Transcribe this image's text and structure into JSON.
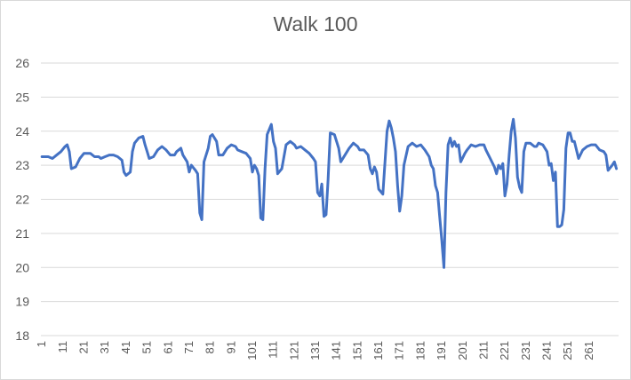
{
  "chart_data": {
    "type": "line",
    "title": "Walk 100",
    "xlabel": "",
    "ylabel": "",
    "ylim": [
      18,
      26
    ],
    "yticks": [
      "18",
      "19",
      "20",
      "21",
      "22",
      "23",
      "24",
      "25",
      "26"
    ],
    "xticks": [
      "1",
      "11",
      "21",
      "31",
      "41",
      "51",
      "61",
      "71",
      "81",
      "91",
      "101",
      "111",
      "121",
      "131",
      "141",
      "151",
      "161",
      "171",
      "181",
      "191",
      "201",
      "211",
      "221",
      "231",
      "241",
      "251",
      "261"
    ],
    "grid": "horizontal",
    "legend": "none",
    "line_color": "#4472c4",
    "series": [
      {
        "points": [
          [
            1,
            23.25
          ],
          [
            4,
            23.25
          ],
          [
            6,
            23.2
          ],
          [
            8,
            23.3
          ],
          [
            10,
            23.4
          ],
          [
            12,
            23.55
          ],
          [
            13,
            23.6
          ],
          [
            14,
            23.4
          ],
          [
            15,
            22.9
          ],
          [
            17,
            22.95
          ],
          [
            19,
            23.2
          ],
          [
            21,
            23.35
          ],
          [
            24,
            23.35
          ],
          [
            26,
            23.25
          ],
          [
            28,
            23.25
          ],
          [
            29,
            23.2
          ],
          [
            31,
            23.25
          ],
          [
            33,
            23.3
          ],
          [
            35,
            23.3
          ],
          [
            37,
            23.25
          ],
          [
            39,
            23.15
          ],
          [
            40,
            22.8
          ],
          [
            41,
            22.7
          ],
          [
            43,
            22.8
          ],
          [
            44,
            23.4
          ],
          [
            45,
            23.65
          ],
          [
            47,
            23.8
          ],
          [
            49,
            23.85
          ],
          [
            50,
            23.6
          ],
          [
            51,
            23.4
          ],
          [
            52,
            23.2
          ],
          [
            54,
            23.25
          ],
          [
            56,
            23.45
          ],
          [
            58,
            23.55
          ],
          [
            60,
            23.45
          ],
          [
            62,
            23.3
          ],
          [
            64,
            23.3
          ],
          [
            65,
            23.4
          ],
          [
            67,
            23.5
          ],
          [
            68,
            23.3
          ],
          [
            70,
            23.1
          ],
          [
            71,
            22.8
          ],
          [
            72,
            23.0
          ],
          [
            74,
            22.85
          ],
          [
            75,
            22.75
          ],
          [
            76,
            21.6
          ],
          [
            77,
            21.4
          ],
          [
            78,
            23.1
          ],
          [
            80,
            23.5
          ],
          [
            81,
            23.85
          ],
          [
            82,
            23.9
          ],
          [
            84,
            23.7
          ],
          [
            85,
            23.3
          ],
          [
            87,
            23.3
          ],
          [
            89,
            23.5
          ],
          [
            91,
            23.6
          ],
          [
            93,
            23.55
          ],
          [
            94,
            23.45
          ],
          [
            96,
            23.4
          ],
          [
            98,
            23.35
          ],
          [
            100,
            23.2
          ],
          [
            101,
            22.8
          ],
          [
            102,
            23.0
          ],
          [
            103,
            22.9
          ],
          [
            104,
            22.7
          ],
          [
            105,
            21.45
          ],
          [
            106,
            21.4
          ],
          [
            107,
            22.9
          ],
          [
            108,
            23.9
          ],
          [
            110,
            24.2
          ],
          [
            111,
            23.7
          ],
          [
            112,
            23.5
          ],
          [
            113,
            22.75
          ],
          [
            115,
            22.9
          ],
          [
            117,
            23.6
          ],
          [
            119,
            23.7
          ],
          [
            121,
            23.6
          ],
          [
            122,
            23.5
          ],
          [
            124,
            23.55
          ],
          [
            126,
            23.45
          ],
          [
            128,
            23.35
          ],
          [
            130,
            23.2
          ],
          [
            131,
            23.1
          ],
          [
            132,
            22.2
          ],
          [
            133,
            22.1
          ],
          [
            134,
            22.45
          ],
          [
            135,
            21.5
          ],
          [
            136,
            21.55
          ],
          [
            137,
            22.6
          ],
          [
            138,
            23.95
          ],
          [
            140,
            23.9
          ],
          [
            142,
            23.5
          ],
          [
            143,
            23.1
          ],
          [
            145,
            23.3
          ],
          [
            147,
            23.5
          ],
          [
            149,
            23.65
          ],
          [
            151,
            23.55
          ],
          [
            152,
            23.45
          ],
          [
            154,
            23.45
          ],
          [
            156,
            23.3
          ],
          [
            157,
            22.9
          ],
          [
            158,
            22.75
          ],
          [
            159,
            22.95
          ],
          [
            160,
            22.8
          ],
          [
            161,
            22.3
          ],
          [
            163,
            22.15
          ],
          [
            164,
            23.1
          ],
          [
            165,
            24.0
          ],
          [
            166,
            24.3
          ],
          [
            167,
            24.1
          ],
          [
            168,
            23.8
          ],
          [
            169,
            23.4
          ],
          [
            170,
            22.4
          ],
          [
            171,
            21.65
          ],
          [
            172,
            22.1
          ],
          [
            173,
            23.0
          ],
          [
            175,
            23.55
          ],
          [
            177,
            23.65
          ],
          [
            179,
            23.55
          ],
          [
            181,
            23.6
          ],
          [
            183,
            23.45
          ],
          [
            185,
            23.25
          ],
          [
            186,
            23.0
          ],
          [
            187,
            22.9
          ],
          [
            188,
            22.4
          ],
          [
            189,
            22.2
          ],
          [
            190,
            21.5
          ],
          [
            191,
            20.8
          ],
          [
            192,
            20.0
          ],
          [
            193,
            22.2
          ],
          [
            194,
            23.6
          ],
          [
            195,
            23.8
          ],
          [
            196,
            23.55
          ],
          [
            197,
            23.7
          ],
          [
            198,
            23.55
          ],
          [
            199,
            23.6
          ],
          [
            200,
            23.1
          ],
          [
            202,
            23.35
          ],
          [
            203,
            23.45
          ],
          [
            205,
            23.6
          ],
          [
            207,
            23.55
          ],
          [
            209,
            23.6
          ],
          [
            211,
            23.6
          ],
          [
            212,
            23.45
          ],
          [
            214,
            23.2
          ],
          [
            216,
            22.95
          ],
          [
            217,
            22.75
          ],
          [
            218,
            23.0
          ],
          [
            219,
            22.9
          ],
          [
            220,
            23.05
          ],
          [
            221,
            22.1
          ],
          [
            222,
            22.45
          ],
          [
            223,
            23.3
          ],
          [
            224,
            24.0
          ],
          [
            225,
            24.35
          ],
          [
            226,
            23.8
          ],
          [
            227,
            22.65
          ],
          [
            228,
            22.35
          ],
          [
            229,
            22.2
          ],
          [
            230,
            23.4
          ],
          [
            231,
            23.65
          ],
          [
            233,
            23.65
          ],
          [
            235,
            23.55
          ],
          [
            236,
            23.55
          ],
          [
            237,
            23.65
          ],
          [
            239,
            23.6
          ],
          [
            241,
            23.4
          ],
          [
            242,
            23.0
          ],
          [
            243,
            23.05
          ],
          [
            244,
            22.55
          ],
          [
            245,
            22.8
          ],
          [
            246,
            21.2
          ],
          [
            247,
            21.2
          ],
          [
            248,
            21.25
          ],
          [
            249,
            21.7
          ],
          [
            250,
            23.5
          ],
          [
            251,
            23.95
          ],
          [
            252,
            23.95
          ],
          [
            253,
            23.7
          ],
          [
            254,
            23.7
          ],
          [
            256,
            23.2
          ],
          [
            258,
            23.45
          ],
          [
            260,
            23.55
          ],
          [
            262,
            23.6
          ],
          [
            264,
            23.6
          ],
          [
            266,
            23.45
          ],
          [
            268,
            23.4
          ],
          [
            269,
            23.3
          ],
          [
            270,
            22.85
          ],
          [
            272,
            23.0
          ],
          [
            273,
            23.1
          ],
          [
            274,
            22.9
          ]
        ]
      }
    ]
  }
}
